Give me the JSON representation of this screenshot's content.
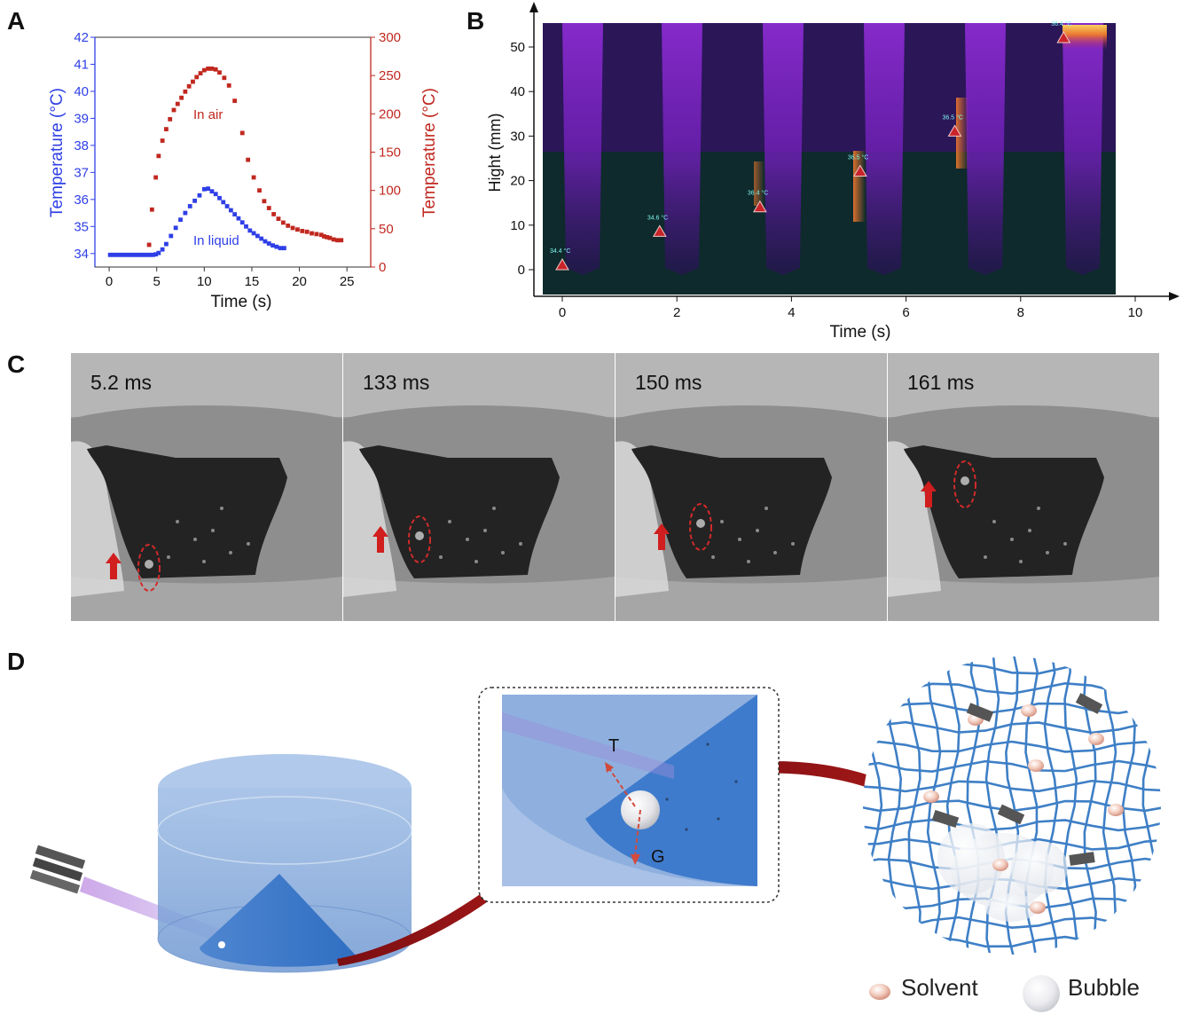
{
  "panels": {
    "a": "A",
    "b": "B",
    "c": "C",
    "d": "D"
  },
  "chart_data": [
    {
      "type": "scatter",
      "panel": "A",
      "xlabel": "Time (s)",
      "ylabel_left": "Temperature (°C)",
      "ylabel_right": "Temperature (°C)",
      "xlim": [
        -1.5,
        27.5
      ],
      "xticks": [
        "0",
        "5",
        "10",
        "15",
        "20",
        "25"
      ],
      "ylim_left": [
        33.5,
        42
      ],
      "yticks_left": [
        "34",
        "35",
        "36",
        "37",
        "38",
        "39",
        "40",
        "41",
        "42"
      ],
      "ylim_right": [
        0,
        300
      ],
      "yticks_right": [
        "0",
        "50",
        "100",
        "150",
        "200",
        "250",
        "300"
      ],
      "colors": {
        "left_axis": "#2f3fe6",
        "right_axis": "#c0281f"
      },
      "series": [
        {
          "name": "In air",
          "axis": "right",
          "color": "#c0281f",
          "points": [
            [
              4.2,
              29
            ],
            [
              4.5,
              75
            ],
            [
              4.9,
              117
            ],
            [
              5.2,
              145
            ],
            [
              5.6,
              165
            ],
            [
              6.0,
              180
            ],
            [
              6.4,
              193
            ],
            [
              6.8,
              205
            ],
            [
              7.2,
              213
            ],
            [
              7.6,
              221
            ],
            [
              8.0,
              229
            ],
            [
              8.4,
              236
            ],
            [
              8.8,
              242
            ],
            [
              9.2,
              248
            ],
            [
              9.6,
              253
            ],
            [
              10.0,
              257
            ],
            [
              10.4,
              259
            ],
            [
              10.8,
              259
            ],
            [
              11.2,
              258
            ],
            [
              11.6,
              254
            ],
            [
              12.1,
              247
            ],
            [
              12.6,
              237
            ],
            [
              13.2,
              217
            ],
            [
              14.0,
              175
            ],
            [
              14.6,
              140
            ],
            [
              15.2,
              117
            ],
            [
              15.8,
              100
            ],
            [
              16.3,
              86
            ],
            [
              16.8,
              77
            ],
            [
              17.3,
              69
            ],
            [
              17.8,
              63
            ],
            [
              18.3,
              58
            ],
            [
              18.8,
              54
            ],
            [
              19.3,
              51
            ],
            [
              19.8,
              49
            ],
            [
              20.3,
              47
            ],
            [
              20.8,
              46
            ],
            [
              21.3,
              44
            ],
            [
              21.8,
              43
            ],
            [
              22.3,
              42
            ],
            [
              22.6,
              40
            ],
            [
              22.9,
              39
            ],
            [
              23.2,
              38
            ],
            [
              23.6,
              36
            ],
            [
              24.0,
              35
            ],
            [
              24.4,
              35
            ]
          ]
        },
        {
          "name": "In liquid",
          "axis": "left",
          "color": "#2f3fe6",
          "points": [
            [
              0.1,
              33.95
            ],
            [
              0.4,
              33.95
            ],
            [
              0.7,
              33.95
            ],
            [
              1.0,
              33.95
            ],
            [
              1.3,
              33.95
            ],
            [
              1.6,
              33.95
            ],
            [
              1.9,
              33.95
            ],
            [
              2.2,
              33.95
            ],
            [
              2.5,
              33.95
            ],
            [
              2.8,
              33.95
            ],
            [
              3.1,
              33.95
            ],
            [
              3.4,
              33.95
            ],
            [
              3.7,
              33.95
            ],
            [
              4.0,
              33.95
            ],
            [
              4.3,
              33.95
            ],
            [
              4.6,
              33.95
            ],
            [
              4.9,
              33.97
            ],
            [
              5.2,
              34.02
            ],
            [
              5.6,
              34.15
            ],
            [
              6.0,
              34.35
            ],
            [
              6.5,
              34.65
            ],
            [
              7.0,
              34.95
            ],
            [
              7.5,
              35.25
            ],
            [
              8.0,
              35.5
            ],
            [
              8.5,
              35.75
            ],
            [
              9.0,
              35.95
            ],
            [
              9.5,
              36.15
            ],
            [
              10.0,
              36.38
            ],
            [
              10.4,
              36.4
            ],
            [
              10.8,
              36.3
            ],
            [
              11.2,
              36.2
            ],
            [
              11.6,
              36.05
            ],
            [
              12.0,
              35.9
            ],
            [
              12.4,
              35.75
            ],
            [
              12.8,
              35.6
            ],
            [
              13.2,
              35.45
            ],
            [
              13.6,
              35.3
            ],
            [
              14.0,
              35.15
            ],
            [
              14.4,
              35.0
            ],
            [
              14.8,
              34.85
            ],
            [
              15.2,
              34.75
            ],
            [
              15.6,
              34.65
            ],
            [
              16.0,
              34.55
            ],
            [
              16.4,
              34.45
            ],
            [
              16.8,
              34.37
            ],
            [
              17.2,
              34.3
            ],
            [
              17.6,
              34.25
            ],
            [
              18.0,
              34.2
            ],
            [
              18.4,
              34.2
            ]
          ]
        }
      ],
      "annotations": [
        {
          "text": "In air",
          "x": 9.5,
          "y_right": 200
        },
        {
          "text": "In liquid",
          "x": 10.5,
          "y_left": 34.8
        }
      ]
    },
    {
      "type": "scatter",
      "panel": "B",
      "xlabel": "Time (s)",
      "ylabel": "Hight (mm)",
      "xlim": [
        -0.4,
        10
      ],
      "xticks": [
        "0",
        "2",
        "4",
        "6",
        "8",
        "10"
      ],
      "ylim": [
        -5,
        56
      ],
      "yticks": [
        "0",
        "10",
        "20",
        "30",
        "40",
        "50"
      ],
      "points": [
        {
          "x": 0.0,
          "y": 1,
          "label": "34.4 °C"
        },
        {
          "x": 1.7,
          "y": 8.5,
          "label": "34.6 °C"
        },
        {
          "x": 3.45,
          "y": 14,
          "label": "36.4 °C"
        },
        {
          "x": 5.2,
          "y": 22,
          "label": "36.5 °C"
        },
        {
          "x": 6.85,
          "y": 31,
          "label": "36.5 °C"
        },
        {
          "x": 8.75,
          "y": 52,
          "label": "36.4 °C"
        }
      ],
      "background": "thermal image columns"
    }
  ],
  "frames": [
    {
      "label": "5.2 ms"
    },
    {
      "label": "133 ms"
    },
    {
      "label": "150 ms"
    },
    {
      "label": "161 ms"
    }
  ],
  "schematic": {
    "force_top": "T",
    "force_bottom": "G"
  },
  "legend": {
    "solvent": "Solvent",
    "bubble": "Bubble"
  }
}
